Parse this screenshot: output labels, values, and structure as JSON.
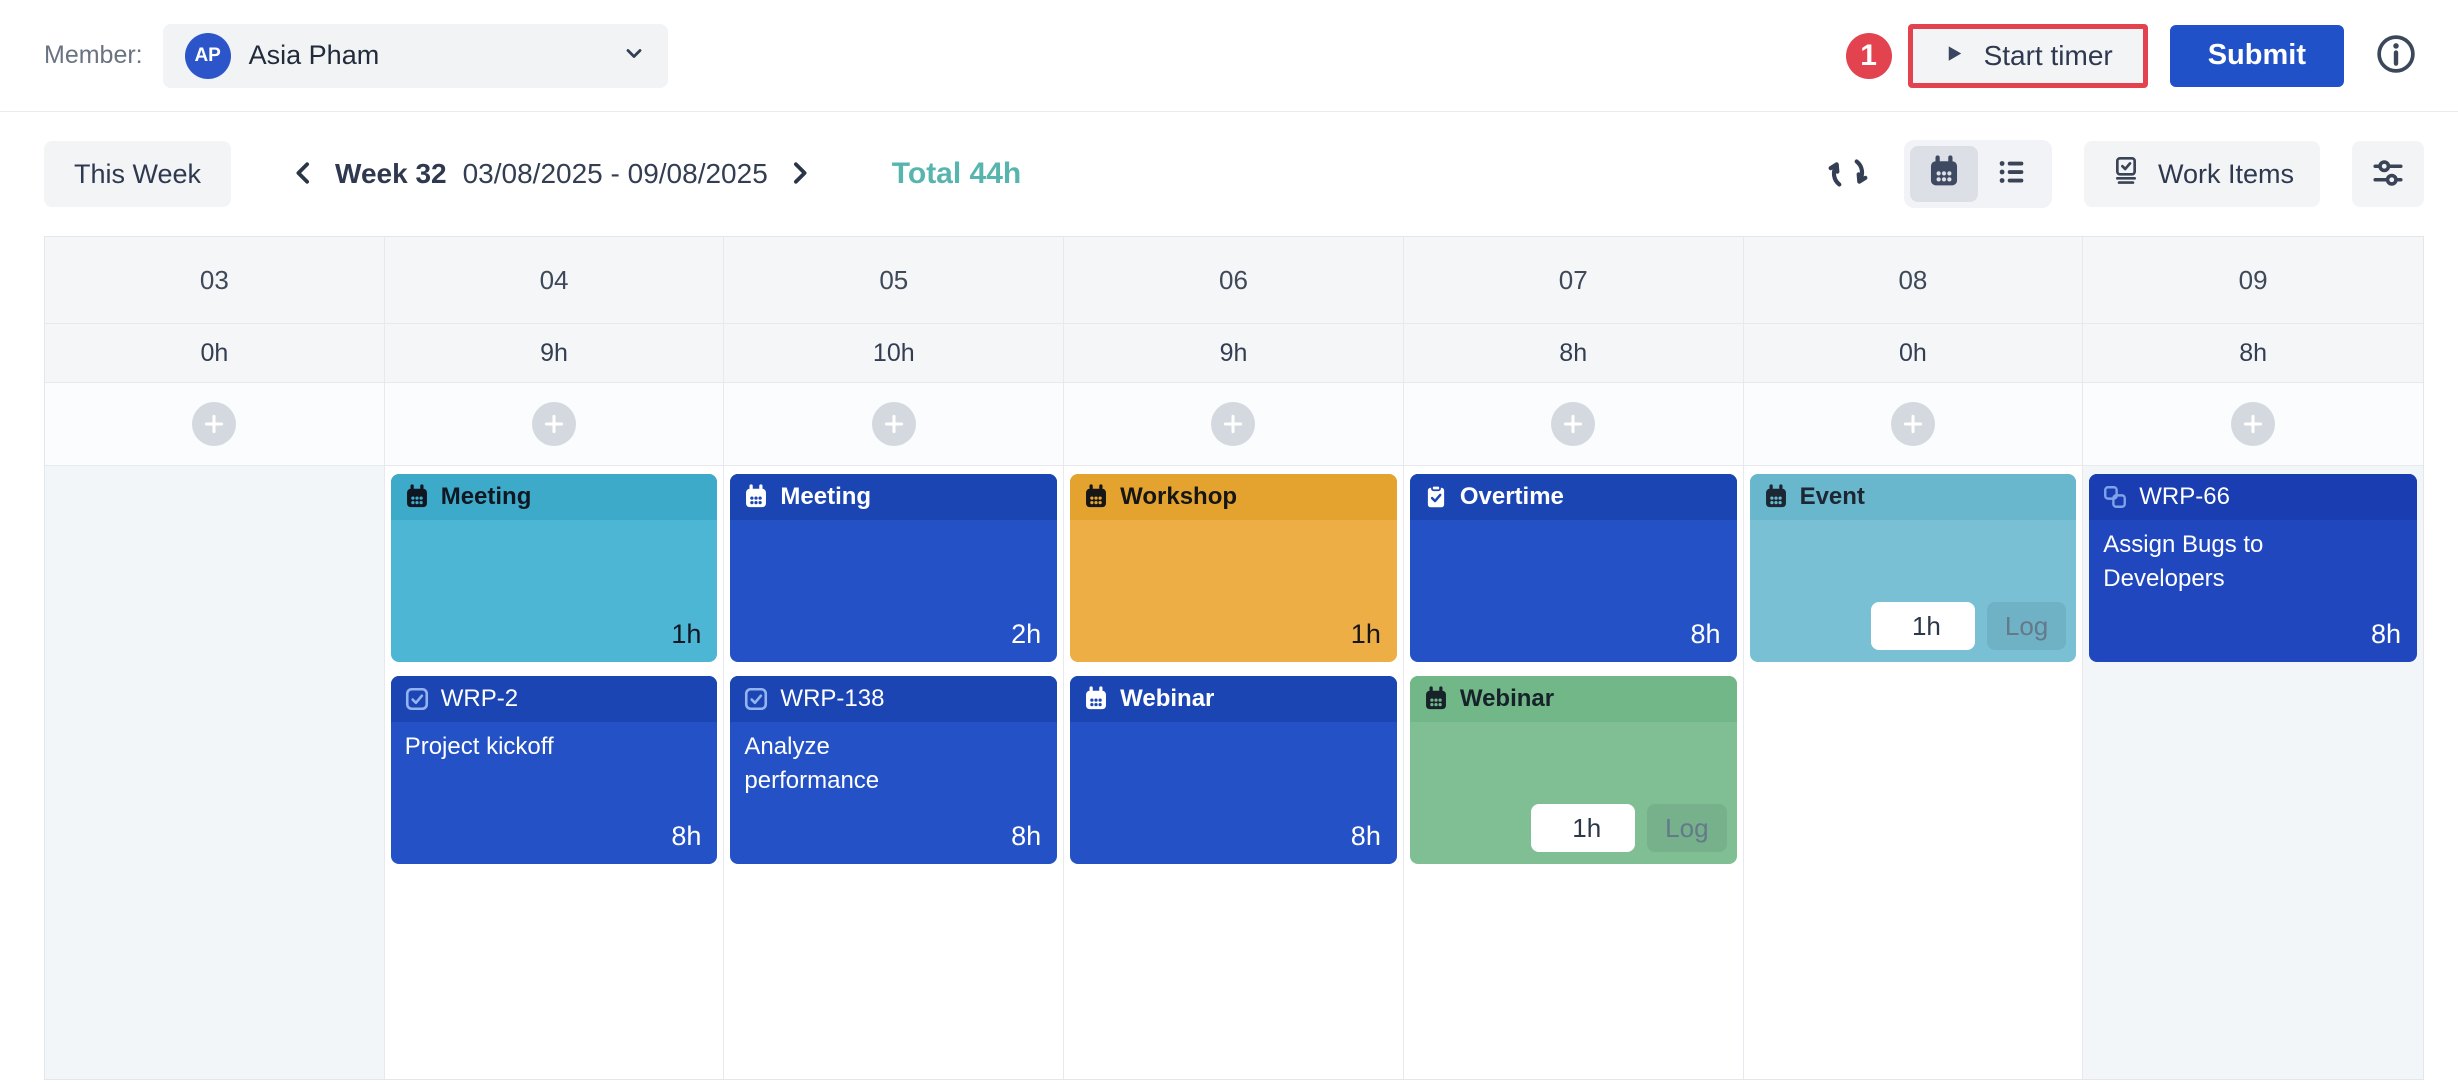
{
  "topbar": {
    "member_label": "Member:",
    "member_initials": "AP",
    "member_name": "Asia Pham",
    "annotation_badge": "1",
    "start_timer_label": "Start timer",
    "submit_label": "Submit"
  },
  "toolbar": {
    "this_week": "This Week",
    "week_label": "Week 32",
    "date_range": "03/08/2025 - 09/08/2025",
    "total": "Total 44h",
    "work_items": "Work Items"
  },
  "colors": {
    "accent_blue": "#2151c8",
    "annotation_red": "#e2434e",
    "total_teal": "#58b5ae"
  },
  "calendar": {
    "days": [
      {
        "date": "03",
        "hours": "0h",
        "weekend": true,
        "events": []
      },
      {
        "date": "04",
        "hours": "9h",
        "weekend": false,
        "events": [
          {
            "icon": "calendar-icon",
            "title": "Meeting",
            "bold": true,
            "hours": "1h",
            "colors": {
              "bg": "#4db6d5",
              "head": "#3daac9",
              "fg": "#101722"
            }
          },
          {
            "icon": "checkbox-icon",
            "icon_color": "#93b4f0",
            "title": "WRP-2",
            "bold": false,
            "subtitle": "Project kickoff",
            "hours": "8h",
            "colors": {
              "bg": "#2452c6",
              "head": "#1c45b4",
              "fg": "#ffffff"
            }
          }
        ]
      },
      {
        "date": "05",
        "hours": "10h",
        "weekend": false,
        "events": [
          {
            "icon": "calendar-icon",
            "title": "Meeting",
            "bold": true,
            "hours": "2h",
            "colors": {
              "bg": "#2452c6",
              "head": "#1c45b4",
              "fg": "#ffffff"
            }
          },
          {
            "icon": "checkbox-icon",
            "icon_color": "#93b4f0",
            "title": "WRP-138",
            "bold": false,
            "subtitle": "Analyze performance",
            "hours": "8h",
            "colors": {
              "bg": "#2452c6",
              "head": "#1c45b4",
              "fg": "#ffffff"
            }
          }
        ]
      },
      {
        "date": "06",
        "hours": "9h",
        "weekend": false,
        "events": [
          {
            "icon": "calendar-icon",
            "title": "Workshop",
            "bold": true,
            "hours": "1h",
            "colors": {
              "bg": "#ecae45",
              "head": "#e3a32e",
              "fg": "#161616"
            }
          },
          {
            "icon": "calendar-icon",
            "title": "Webinar",
            "bold": true,
            "hours": "8h",
            "colors": {
              "bg": "#2452c6",
              "head": "#1c45b4",
              "fg": "#ffffff"
            }
          }
        ]
      },
      {
        "date": "07",
        "hours": "8h",
        "weekend": false,
        "events": [
          {
            "icon": "clipboard-check-icon",
            "title": "Overtime",
            "bold": true,
            "hours": "8h",
            "colors": {
              "bg": "#2452c6",
              "head": "#1c45b4",
              "fg": "#ffffff"
            }
          },
          {
            "icon": "calendar-icon",
            "title": "Webinar",
            "bold": true,
            "log": {
              "value": "1h",
              "button": "Log"
            },
            "colors": {
              "bg": "#80bf94",
              "head": "#72b787",
              "fg": "#18222b"
            }
          }
        ]
      },
      {
        "date": "08",
        "hours": "0h",
        "weekend": false,
        "events": [
          {
            "icon": "calendar-icon",
            "title": "Event",
            "bold": true,
            "log": {
              "value": "1h",
              "button": "Log"
            },
            "colors": {
              "bg": "#79c0d5",
              "head": "#69b7cd",
              "fg": "#1c2733"
            }
          }
        ]
      },
      {
        "date": "09",
        "hours": "8h",
        "weekend": true,
        "events": [
          {
            "icon": "subtask-icon",
            "icon_color": "#7fa3ea",
            "title": "WRP-66",
            "bold": false,
            "subtitle": "Assign Bugs to Developers",
            "hours": "8h",
            "colors": {
              "bg": "#2147bf",
              "head": "#1a3db1",
              "fg": "#ffffff"
            }
          }
        ]
      }
    ]
  }
}
